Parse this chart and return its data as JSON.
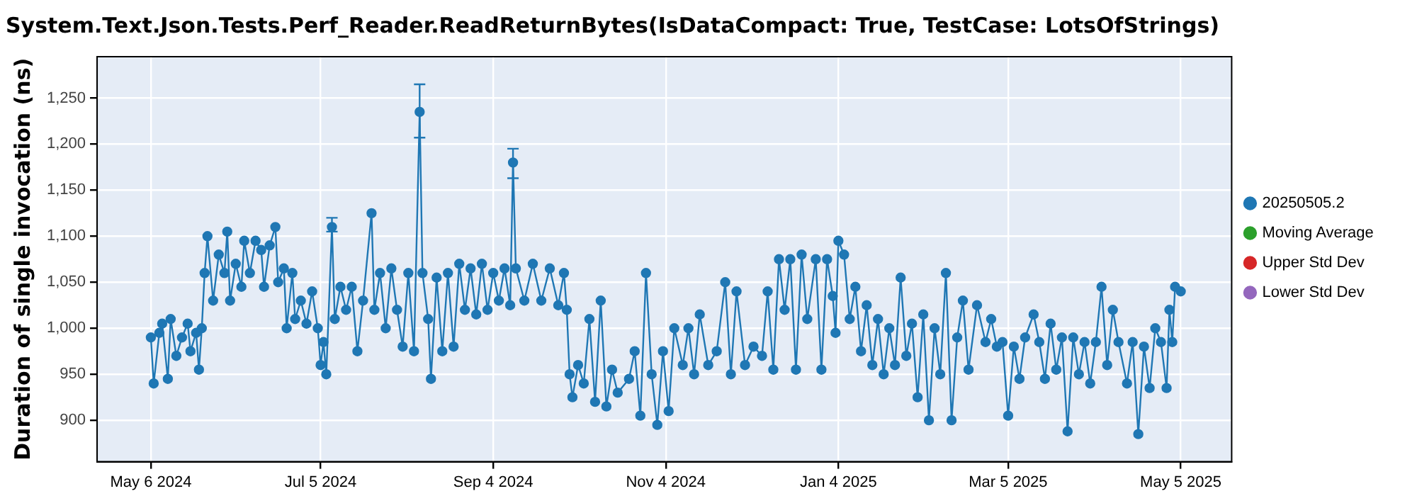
{
  "chart_data": {
    "type": "line",
    "title": "System.Text.Json.Tests.Perf_Reader.ReadReturnBytes(IsDataCompact: True, TestCase: LotsOfStrings)",
    "ylabel": "Duration of single invocation (ns)",
    "xlim": [
      "2024-04-17",
      "2025-05-23"
    ],
    "xticks": [
      {
        "value": "2024-05-06",
        "label": "May 6 2024"
      },
      {
        "value": "2024-07-05",
        "label": "Jul 5 2024"
      },
      {
        "value": "2024-09-04",
        "label": "Sep 4 2024"
      },
      {
        "value": "2024-11-04",
        "label": "Nov 4 2024"
      },
      {
        "value": "2025-01-04",
        "label": "Jan 4 2025"
      },
      {
        "value": "2025-03-05",
        "label": "Mar 5 2025"
      },
      {
        "value": "2025-05-05",
        "label": "May 5 2025"
      }
    ],
    "ylim": [
      855,
      1295
    ],
    "yticks": [
      900,
      950,
      {
        "value": 1000,
        "label": "1,000"
      },
      {
        "value": 1050,
        "label": "1,050"
      },
      {
        "value": 1100,
        "label": "1,100"
      },
      {
        "value": 1150,
        "label": "1,150"
      },
      {
        "value": 1200,
        "label": "1,200"
      },
      {
        "value": 1250,
        "label": "1,250"
      }
    ],
    "grid": true,
    "legend": "right",
    "marker": "circle",
    "line_style": "solid",
    "series": [
      {
        "name": "20250505.2",
        "color": "#1f77b4",
        "x": [
          "2024-05-06",
          "2024-05-07",
          "2024-05-09",
          "2024-05-10",
          "2024-05-12",
          "2024-05-13",
          "2024-05-15",
          "2024-05-17",
          "2024-05-19",
          "2024-05-20",
          "2024-05-22",
          "2024-05-23",
          "2024-05-24",
          "2024-05-25",
          "2024-05-26",
          "2024-05-28",
          "2024-05-30",
          "2024-06-01",
          "2024-06-02",
          "2024-06-03",
          "2024-06-05",
          "2024-06-07",
          "2024-06-08",
          "2024-06-10",
          "2024-06-12",
          "2024-06-14",
          "2024-06-15",
          "2024-06-17",
          "2024-06-19",
          "2024-06-20",
          "2024-06-22",
          "2024-06-23",
          "2024-06-25",
          "2024-06-26",
          "2024-06-28",
          "2024-06-30",
          "2024-07-02",
          "2024-07-04",
          "2024-07-05",
          "2024-07-06",
          "2024-07-07",
          "2024-07-09",
          "2024-07-10",
          "2024-07-12",
          "2024-07-14",
          "2024-07-16",
          "2024-07-18",
          "2024-07-20",
          "2024-07-23",
          "2024-07-24",
          "2024-07-26",
          "2024-07-28",
          "2024-07-30",
          "2024-08-01",
          "2024-08-03",
          "2024-08-05",
          "2024-08-07",
          "2024-08-09",
          "2024-08-10",
          "2024-08-12",
          "2024-08-13",
          "2024-08-15",
          "2024-08-17",
          "2024-08-19",
          "2024-08-21",
          "2024-08-23",
          "2024-08-25",
          "2024-08-27",
          "2024-08-29",
          "2024-08-31",
          "2024-09-02",
          "2024-09-04",
          "2024-09-06",
          "2024-09-08",
          "2024-09-10",
          "2024-09-11",
          "2024-09-12",
          "2024-09-15",
          "2024-09-18",
          "2024-09-21",
          "2024-09-24",
          "2024-09-27",
          "2024-09-29",
          "2024-09-30",
          "2024-10-01",
          "2024-10-02",
          "2024-10-04",
          "2024-10-06",
          "2024-10-08",
          "2024-10-10",
          "2024-10-12",
          "2024-10-14",
          "2024-10-16",
          "2024-10-18",
          "2024-10-22",
          "2024-10-24",
          "2024-10-26",
          "2024-10-28",
          "2024-10-30",
          "2024-11-01",
          "2024-11-03",
          "2024-11-05",
          "2024-11-07",
          "2024-11-10",
          "2024-11-12",
          "2024-11-14",
          "2024-11-16",
          "2024-11-19",
          "2024-11-22",
          "2024-11-25",
          "2024-11-27",
          "2024-11-29",
          "2024-12-02",
          "2024-12-05",
          "2024-12-08",
          "2024-12-10",
          "2024-12-12",
          "2024-12-14",
          "2024-12-16",
          "2024-12-18",
          "2024-12-20",
          "2024-12-22",
          "2024-12-24",
          "2024-12-27",
          "2024-12-29",
          "2024-12-31",
          "2025-01-02",
          "2025-01-03",
          "2025-01-04",
          "2025-01-06",
          "2025-01-08",
          "2025-01-10",
          "2025-01-12",
          "2025-01-14",
          "2025-01-16",
          "2025-01-18",
          "2025-01-20",
          "2025-01-22",
          "2025-01-24",
          "2025-01-26",
          "2025-01-28",
          "2025-01-30",
          "2025-02-01",
          "2025-02-03",
          "2025-02-05",
          "2025-02-07",
          "2025-02-09",
          "2025-02-11",
          "2025-02-13",
          "2025-02-15",
          "2025-02-17",
          "2025-02-19",
          "2025-02-22",
          "2025-02-25",
          "2025-02-27",
          "2025-03-01",
          "2025-03-03",
          "2025-03-05",
          "2025-03-07",
          "2025-03-09",
          "2025-03-11",
          "2025-03-14",
          "2025-03-16",
          "2025-03-18",
          "2025-03-20",
          "2025-03-22",
          "2025-03-24",
          "2025-03-26",
          "2025-03-28",
          "2025-03-30",
          "2025-04-01",
          "2025-04-03",
          "2025-04-05",
          "2025-04-07",
          "2025-04-09",
          "2025-04-11",
          "2025-04-13",
          "2025-04-16",
          "2025-04-18",
          "2025-04-20",
          "2025-04-22",
          "2025-04-24",
          "2025-04-26",
          "2025-04-28",
          "2025-04-30",
          "2025-05-01",
          "2025-05-02",
          "2025-05-03",
          "2025-05-05"
        ],
        "values": [
          990,
          940,
          995,
          1005,
          945,
          1010,
          970,
          990,
          1005,
          975,
          995,
          955,
          1000,
          1060,
          1100,
          1030,
          1080,
          1060,
          1105,
          1030,
          1070,
          1045,
          1095,
          1060,
          1095,
          1085,
          1045,
          1090,
          1110,
          1050,
          1065,
          1000,
          1060,
          1010,
          1030,
          1005,
          1040,
          1000,
          960,
          985,
          950,
          1110,
          1010,
          1045,
          1020,
          1045,
          975,
          1030,
          1125,
          1020,
          1060,
          1000,
          1065,
          1020,
          980,
          1060,
          975,
          1235,
          1060,
          1010,
          945,
          1055,
          975,
          1060,
          980,
          1070,
          1020,
          1065,
          1015,
          1070,
          1020,
          1060,
          1030,
          1065,
          1025,
          1180,
          1065,
          1030,
          1070,
          1030,
          1065,
          1025,
          1060,
          1020,
          950,
          925,
          960,
          940,
          1010,
          920,
          1030,
          915,
          955,
          930,
          945,
          975,
          905,
          1060,
          950,
          895,
          975,
          910,
          1000,
          960,
          1000,
          950,
          1015,
          960,
          975,
          1050,
          950,
          1040,
          960,
          980,
          970,
          1040,
          955,
          1075,
          1020,
          1075,
          955,
          1080,
          1010,
          1075,
          955,
          1075,
          1035,
          995,
          1095,
          1080,
          1010,
          1045,
          975,
          1025,
          960,
          1010,
          950,
          1000,
          960,
          1055,
          970,
          1005,
          925,
          1015,
          900,
          1000,
          950,
          1060,
          900,
          990,
          1030,
          955,
          1025,
          985,
          1010,
          980,
          985,
          905,
          980,
          945,
          990,
          1015,
          985,
          945,
          1005,
          955,
          990,
          888,
          990,
          950,
          985,
          940,
          985,
          1045,
          960,
          1020,
          985,
          940,
          985,
          885,
          980,
          935,
          1000,
          985,
          935,
          1020,
          985,
          1045,
          1040
        ],
        "errors": [
          null,
          null,
          null,
          null,
          null,
          null,
          null,
          null,
          null,
          null,
          null,
          null,
          null,
          null,
          null,
          null,
          null,
          null,
          null,
          null,
          null,
          null,
          null,
          null,
          null,
          null,
          null,
          null,
          null,
          null,
          null,
          null,
          null,
          null,
          null,
          null,
          null,
          null,
          null,
          null,
          null,
          [
            1105,
            1120
          ],
          null,
          null,
          null,
          null,
          null,
          null,
          null,
          null,
          null,
          null,
          null,
          null,
          null,
          null,
          null,
          [
            1207,
            1265
          ],
          null,
          null,
          null,
          null,
          null,
          null,
          null,
          null,
          null,
          null,
          null,
          null,
          null,
          null,
          null,
          null,
          null,
          [
            1163,
            1195
          ],
          null,
          null,
          null,
          null,
          null,
          null,
          null,
          null,
          null,
          null,
          null,
          null,
          null,
          null,
          null,
          null,
          null,
          null,
          null,
          null,
          null,
          null,
          null,
          null,
          null,
          null,
          null,
          null,
          null,
          null,
          null,
          null,
          null,
          null,
          null,
          null,
          null,
          null,
          null,
          null,
          null,
          null,
          null,
          null,
          null,
          null,
          null,
          null,
          null,
          null,
          null,
          null,
          null,
          null,
          null,
          null,
          null,
          null,
          null,
          null,
          null,
          null,
          null,
          null,
          null,
          null,
          null,
          null,
          null,
          null,
          null,
          null,
          null,
          null,
          null,
          null,
          null,
          null,
          null,
          null,
          null,
          null,
          null,
          null,
          null,
          null,
          null,
          null,
          null,
          null,
          null,
          null,
          null,
          null,
          null,
          null,
          null,
          null,
          null,
          null,
          null,
          null,
          null,
          null,
          null,
          null,
          null,
          null,
          null,
          null,
          null,
          null,
          null
        ]
      },
      {
        "name": "Moving Average",
        "color": "#2ca02c"
      },
      {
        "name": "Upper Std Dev",
        "color": "#d62728"
      },
      {
        "name": "Lower Std Dev",
        "color": "#9467bd"
      }
    ]
  }
}
